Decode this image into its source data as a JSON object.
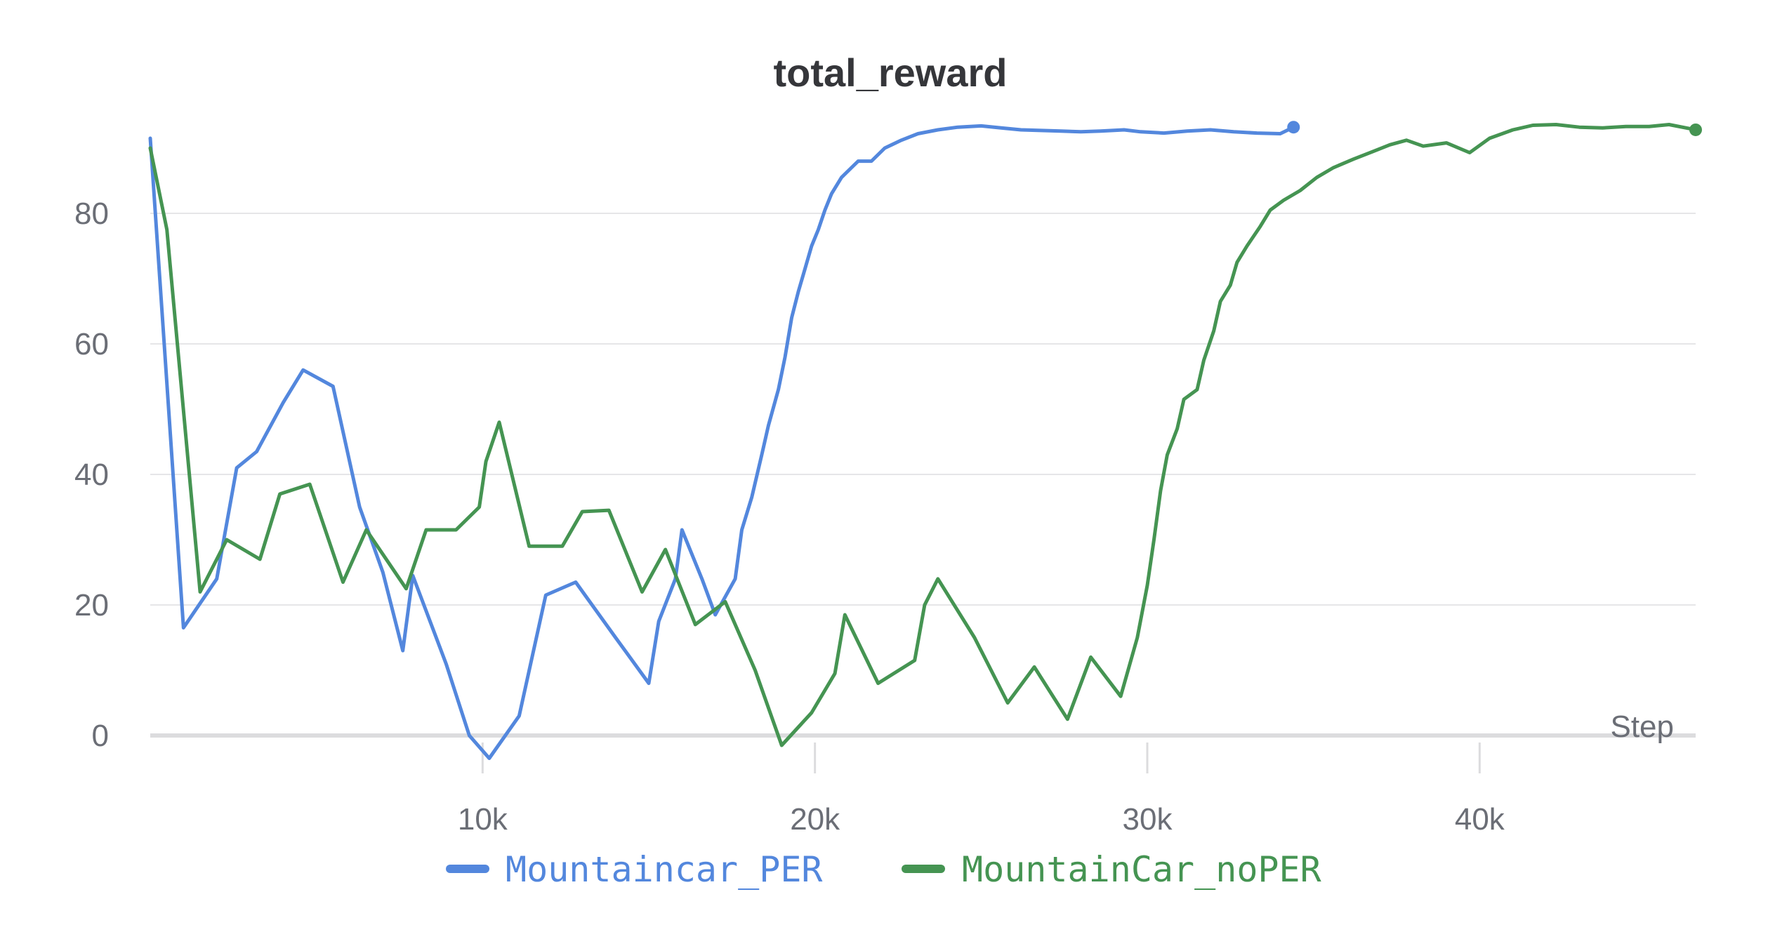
{
  "chart_data": {
    "type": "line",
    "title": "total_reward",
    "xlabel": "Step",
    "ylabel": "",
    "xlim": [
      0,
      46500
    ],
    "ylim": [
      -4,
      94
    ],
    "x_ticks": [
      10000,
      20000,
      30000,
      40000
    ],
    "x_tick_labels": [
      "10k",
      "20k",
      "30k",
      "40k"
    ],
    "y_ticks": [
      0,
      20,
      40,
      60,
      80
    ],
    "y_tick_labels": [
      "0",
      "20",
      "40",
      "60",
      "80"
    ],
    "grid": true,
    "legend_position": "bottom",
    "series": [
      {
        "name": "Mountaincar_PER",
        "color": "#5387dd",
        "points": [
          [
            0,
            91.5
          ],
          [
            1000,
            16.5
          ],
          [
            2000,
            24
          ],
          [
            2600,
            41
          ],
          [
            3200,
            43.5
          ],
          [
            4000,
            51
          ],
          [
            4600,
            56
          ],
          [
            5500,
            53.5
          ],
          [
            6300,
            35
          ],
          [
            7000,
            25
          ],
          [
            7600,
            13
          ],
          [
            7900,
            24.5
          ],
          [
            8900,
            11
          ],
          [
            9600,
            0
          ],
          [
            10200,
            -3.5
          ],
          [
            11100,
            3
          ],
          [
            11900,
            21.5
          ],
          [
            12800,
            23.5
          ],
          [
            14000,
            15
          ],
          [
            15000,
            8
          ],
          [
            15300,
            17.5
          ],
          [
            15800,
            24
          ],
          [
            16000,
            31.5
          ],
          [
            16600,
            24
          ],
          [
            17000,
            18.5
          ],
          [
            17600,
            24
          ],
          [
            17800,
            31.5
          ],
          [
            18100,
            36.5
          ],
          [
            18400,
            43
          ],
          [
            18600,
            47.5
          ],
          [
            18900,
            53
          ],
          [
            19100,
            58
          ],
          [
            19300,
            64
          ],
          [
            19500,
            68
          ],
          [
            19700,
            71.5
          ],
          [
            19900,
            75
          ],
          [
            20100,
            77.5
          ],
          [
            20300,
            80.5
          ],
          [
            20500,
            83
          ],
          [
            20800,
            85.5
          ],
          [
            21100,
            87
          ],
          [
            21300,
            88
          ],
          [
            21700,
            88
          ],
          [
            22100,
            90
          ],
          [
            22600,
            91.2
          ],
          [
            23100,
            92.2
          ],
          [
            23700,
            92.8
          ],
          [
            24300,
            93.2
          ],
          [
            25000,
            93.4
          ],
          [
            25600,
            93.1
          ],
          [
            26200,
            92.8
          ],
          [
            26800,
            92.7
          ],
          [
            27400,
            92.6
          ],
          [
            28000,
            92.5
          ],
          [
            28600,
            92.6
          ],
          [
            29300,
            92.8
          ],
          [
            29800,
            92.5
          ],
          [
            30500,
            92.3
          ],
          [
            31200,
            92.6
          ],
          [
            31900,
            92.8
          ],
          [
            32600,
            92.5
          ],
          [
            33300,
            92.3
          ],
          [
            34000,
            92.2
          ],
          [
            34400,
            93.2
          ]
        ]
      },
      {
        "name": "MountainCar_noPER",
        "color": "#459452",
        "points": [
          [
            0,
            90
          ],
          [
            500,
            77.5
          ],
          [
            1500,
            22
          ],
          [
            2300,
            30
          ],
          [
            3300,
            27
          ],
          [
            3900,
            37
          ],
          [
            4800,
            38.5
          ],
          [
            5800,
            23.5
          ],
          [
            6500,
            31.5
          ],
          [
            7700,
            22.5
          ],
          [
            8300,
            31.5
          ],
          [
            9200,
            31.5
          ],
          [
            9900,
            35
          ],
          [
            10100,
            42
          ],
          [
            10500,
            48
          ],
          [
            11400,
            29
          ],
          [
            12400,
            29
          ],
          [
            13000,
            34.3
          ],
          [
            13800,
            34.5
          ],
          [
            14800,
            22
          ],
          [
            15500,
            28.5
          ],
          [
            16400,
            17
          ],
          [
            17300,
            20.5
          ],
          [
            18200,
            10
          ],
          [
            19000,
            -1.5
          ],
          [
            19900,
            3.5
          ],
          [
            20600,
            9.5
          ],
          [
            20900,
            18.5
          ],
          [
            21900,
            8
          ],
          [
            23000,
            11.5
          ],
          [
            23300,
            20
          ],
          [
            23700,
            24
          ],
          [
            24800,
            15
          ],
          [
            25800,
            5
          ],
          [
            26600,
            10.5
          ],
          [
            27600,
            2.5
          ],
          [
            28300,
            12
          ],
          [
            29200,
            6
          ],
          [
            29700,
            15
          ],
          [
            30000,
            23
          ],
          [
            30200,
            30
          ],
          [
            30400,
            37.5
          ],
          [
            30600,
            43
          ],
          [
            30900,
            47
          ],
          [
            31100,
            51.5
          ],
          [
            31500,
            53
          ],
          [
            31700,
            57.5
          ],
          [
            32000,
            62
          ],
          [
            32200,
            66.5
          ],
          [
            32500,
            69
          ],
          [
            32700,
            72.5
          ],
          [
            33000,
            75
          ],
          [
            33400,
            78
          ],
          [
            33700,
            80.5
          ],
          [
            34100,
            82
          ],
          [
            34600,
            83.5
          ],
          [
            35100,
            85.5
          ],
          [
            35600,
            87
          ],
          [
            36200,
            88.3
          ],
          [
            36800,
            89.5
          ],
          [
            37300,
            90.5
          ],
          [
            37800,
            91.2
          ],
          [
            38300,
            90.3
          ],
          [
            39000,
            90.8
          ],
          [
            39700,
            89.3
          ],
          [
            40300,
            91.5
          ],
          [
            41000,
            92.8
          ],
          [
            41600,
            93.5
          ],
          [
            42300,
            93.6
          ],
          [
            43000,
            93.2
          ],
          [
            43700,
            93.1
          ],
          [
            44400,
            93.3
          ],
          [
            45100,
            93.3
          ],
          [
            45700,
            93.6
          ],
          [
            46300,
            93.0
          ],
          [
            46500,
            92.8
          ]
        ]
      }
    ]
  }
}
